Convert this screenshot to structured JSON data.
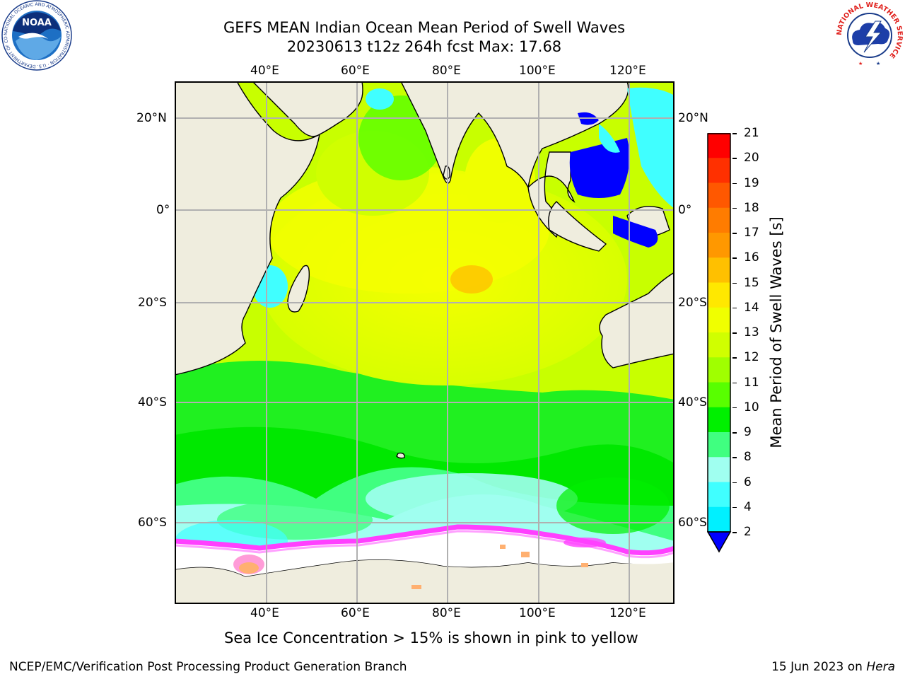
{
  "title": {
    "line1": "GEFS MEAN Indian Ocean Mean Period of Swell Waves",
    "line2": "20230613 t12z 264h fcst   Max: 17.68"
  },
  "map": {
    "region": "Indian Ocean",
    "lon_ticks": [
      "40°E",
      "60°E",
      "80°E",
      "100°E",
      "120°E"
    ],
    "lat_ticks": [
      "20°N",
      "0°",
      "20°S",
      "40°S",
      "60°S"
    ],
    "colors": {
      "land": "#efedde",
      "grid": "#b0b0b0",
      "sea_ice": "#ffffff",
      "ice_edge": "#ff40ff"
    }
  },
  "colorbar": {
    "label": "Mean Period of Swell Waves [s]",
    "ticks": [
      "21",
      "20",
      "19",
      "18",
      "17",
      "16",
      "15",
      "14",
      "13",
      "12",
      "11",
      "10",
      "9",
      "8",
      "6",
      "4",
      "2"
    ],
    "colors_top_to_bottom": [
      "#ff0000",
      "#ff3000",
      "#ff5800",
      "#ff7c00",
      "#ff9800",
      "#ffc000",
      "#ffe800",
      "#f0ff00",
      "#d0ff00",
      "#a0ff00",
      "#58ff00",
      "#00f000",
      "#40ff80",
      "#a0fff0",
      "#40ffff",
      "#00f0ff",
      "#00d8ff",
      "#0070ff"
    ],
    "extend_color": "#0000ff"
  },
  "logos": {
    "noaa": {
      "text": "NOAA",
      "ring_text": "NATIONAL OCEANIC AND ATMOSPHERIC ADMINISTRATION · U.S. DEPARTMENT OF COMMERCE"
    },
    "nws": {
      "ring_text": "NATIONAL WEATHER SERVICE"
    }
  },
  "note": "Sea Ice Concentration > 15% is shown in pink to yellow",
  "footer": {
    "left": "NCEP/EMC/Verification Post Processing Product Generation Branch",
    "right_prefix": "15 Jun 2023 on ",
    "right_machine": "Hera"
  }
}
